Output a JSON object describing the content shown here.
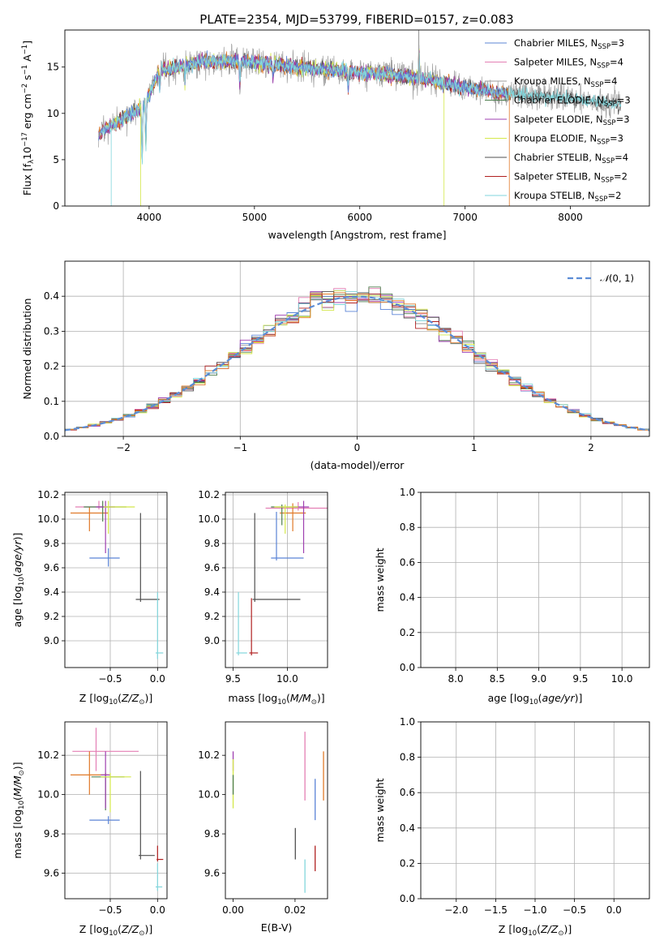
{
  "title": "PLATE=2354, MJD=53799, FIBERID=0157, z=0.083",
  "colors": {
    "Chabrier MILES": "#5b84d6",
    "Salpeter MILES": "#e47fb4",
    "Kroupa MILES": "#9d9d9d",
    "Chabrier ELODIE": "#4f7f4f",
    "Salpeter ELODIE": "#9f3fb0",
    "Kroupa ELODIE": "#d4e84a",
    "Chabrier STELIB": "#505050",
    "Salpeter STELIB": "#b02020",
    "Kroupa STELIB": "#82d6dc",
    "orange": "#e07a2a"
  },
  "chart_data": [
    {
      "type": "line",
      "name": "spectrum",
      "xlabel": "wavelength [Angstrom, rest frame]",
      "ylabel": "Flux [f",
      "xlim": [
        3200,
        8750
      ],
      "ylim": [
        0,
        19
      ],
      "xticks": [
        4000,
        5000,
        6000,
        7000,
        8000
      ],
      "yticks": [
        0,
        5,
        10,
        15
      ],
      "grid": false,
      "legend_position": "top-right",
      "legend": [
        {
          "name": "Chabrier MILES",
          "nssp": "3"
        },
        {
          "name": "Salpeter MILES",
          "nssp": "4"
        },
        {
          "name": "Kroupa MILES",
          "nssp": "4"
        },
        {
          "name": "Chabrier ELODIE",
          "nssp": "3"
        },
        {
          "name": "Salpeter ELODIE",
          "nssp": "3"
        },
        {
          "name": "Kroupa ELODIE",
          "nssp": "3"
        },
        {
          "name": "Chabrier STELIB",
          "nssp": "4"
        },
        {
          "name": "Salpeter STELIB",
          "nssp": "2"
        },
        {
          "name": "Kroupa STELIB",
          "nssp": "2"
        }
      ],
      "continuum": [
        [
          3520,
          7.9
        ],
        [
          3700,
          9.0
        ],
        [
          3950,
          10.8
        ],
        [
          4100,
          14.6
        ],
        [
          4500,
          15.6
        ],
        [
          4900,
          15.6
        ],
        [
          5500,
          14.9
        ],
        [
          6000,
          14.4
        ],
        [
          6500,
          13.9
        ],
        [
          7000,
          12.8
        ],
        [
          7400,
          12.1
        ],
        [
          8000,
          11.6
        ],
        [
          8400,
          11.0
        ],
        [
          8480,
          10.8
        ]
      ]
    },
    {
      "type": "line",
      "name": "residual-histogram",
      "xlabel": "(data-model)/error",
      "ylabel": "Normed distribution",
      "xlim": [
        -2.5,
        2.5
      ],
      "ylim": [
        0,
        0.5
      ],
      "xticks": [
        -2,
        -1,
        0,
        1,
        2
      ],
      "yticks": [
        0.0,
        0.1,
        0.2,
        0.3,
        0.4
      ],
      "grid": true,
      "legend_position": "top-right",
      "reference_curve": "N(0,1)",
      "bin_width": 0.1
    },
    {
      "type": "scatter",
      "name": "age-vs-metallicity",
      "xlabel": "Z [log10(Z/Zsun)]",
      "ylabel": "age [log10(age/yr)]",
      "xlim": [
        -0.98,
        0.1
      ],
      "ylim": [
        8.78,
        10.22
      ],
      "xticks": [
        -0.5,
        0.0
      ],
      "yticks": [
        9.0,
        9.2,
        9.4,
        9.6,
        9.8,
        10.0,
        10.2
      ],
      "grid": true
    },
    {
      "type": "scatter",
      "name": "age-vs-mass",
      "xlabel": "mass [log10(M/Msun)]",
      "ylabel": "",
      "xlim": [
        9.43,
        10.37
      ],
      "ylim": [
        8.78,
        10.22
      ],
      "xticks": [
        9.5,
        10.0
      ],
      "yticks": [
        9.0,
        9.2,
        9.4,
        9.6,
        9.8,
        10.0,
        10.2
      ],
      "grid": true
    },
    {
      "type": "line",
      "name": "mass-weight-vs-age",
      "xlabel": "age [log10(age/yr)]",
      "ylabel": "mass weight",
      "xlim": [
        7.58,
        10.33
      ],
      "ylim": [
        0,
        1.0
      ],
      "xticks": [
        8.0,
        8.5,
        9.0,
        9.5,
        10.0
      ],
      "yticks": [
        0.0,
        0.2,
        0.4,
        0.6,
        0.8,
        1.0
      ],
      "grid": true
    },
    {
      "type": "scatter",
      "name": "mass-vs-metallicity",
      "xlabel": "Z [log10(Z/Zsun)]",
      "ylabel": "mass [log10(M/Msun)]",
      "xlim": [
        -0.98,
        0.1
      ],
      "ylim": [
        9.47,
        10.37
      ],
      "xticks": [
        -0.5,
        0.0
      ],
      "yticks": [
        9.6,
        9.8,
        10.0,
        10.2
      ],
      "grid": true
    },
    {
      "type": "scatter",
      "name": "mass-vs-ebv",
      "xlabel": "E(B-V)",
      "ylabel": "",
      "xlim": [
        -0.0025,
        0.0305
      ],
      "ylim": [
        9.47,
        10.37
      ],
      "xticks": [
        0.0,
        0.02
      ],
      "yticks": [
        9.6,
        9.8,
        10.0,
        10.2
      ],
      "grid": false
    },
    {
      "type": "line",
      "name": "mass-weight-vs-metallicity",
      "xlabel": "Z [log10(Z/Zsun)]",
      "ylabel": "mass weight",
      "xlim": [
        -2.45,
        0.45
      ],
      "ylim": [
        0,
        1.0
      ],
      "xticks": [
        -2.0,
        -1.5,
        -1.0,
        -0.5,
        0.0
      ],
      "yticks": [
        0.0,
        0.2,
        0.4,
        0.6,
        0.8,
        1.0
      ],
      "grid": true
    }
  ],
  "labels": {
    "flux_ylabel": "Flux [f",
    "flux_ylabel_unit": "10",
    "hist_legend": "N(0,1)",
    "z_label": "Z [log",
    "age_label": "age  [log",
    "mass_label": "mass [log",
    "ebv_label": "E(B-V)",
    "mass_weight": "mass weight"
  }
}
